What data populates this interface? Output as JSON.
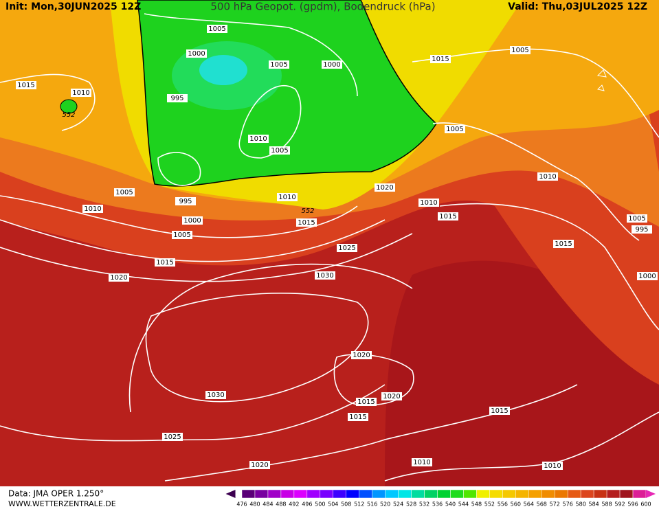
{
  "header": {
    "init": "Init: Mon,30JUN2025 12Z",
    "title": "500 hPa Geopot. (gpdm), Bodendruck (hPa)",
    "valid": "Valid: Thu,03JUL2025 12Z"
  },
  "map": {
    "isobar_labels": [
      1005,
      1000,
      1005,
      1000,
      995,
      1015,
      1010,
      1015,
      1005,
      1005,
      1010,
      1005,
      1005,
      1010,
      995,
      1000,
      1005,
      1010,
      1015,
      1020,
      1010,
      1015,
      1010,
      1025,
      1015,
      1020,
      1030,
      1015,
      1005,
      995,
      1000,
      1020,
      1015,
      1020,
      1015,
      1030,
      1025,
      1015,
      1010,
      1020,
      1010
    ],
    "geopotential_labels": [
      552,
      552
    ]
  },
  "footer": {
    "data_source": "Data: JMA OPER 1.250°",
    "website": "WWW.WETTERZENTRALE.DE"
  },
  "colorbar": {
    "labels": [
      476,
      480,
      484,
      488,
      492,
      496,
      500,
      504,
      508,
      512,
      516,
      520,
      524,
      528,
      532,
      536,
      540,
      544,
      548,
      552,
      556,
      560,
      564,
      568,
      572,
      576,
      580,
      584,
      588,
      592,
      596,
      600
    ]
  }
}
